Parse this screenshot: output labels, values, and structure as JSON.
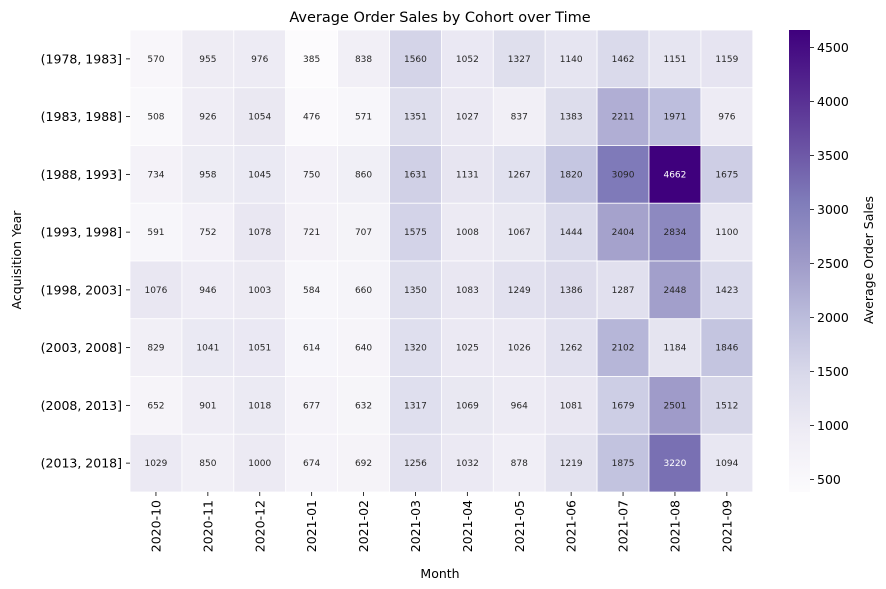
{
  "chart_data": {
    "type": "heatmap",
    "title": "Average Order Sales by Cohort over Time",
    "xlabel": "Month",
    "ylabel": "Acquisition Year",
    "colorbar_label": "Average Order Sales",
    "colormap": "Purples",
    "color_range": [
      385,
      4662
    ],
    "colorbar_ticks": [
      500,
      1000,
      1500,
      2000,
      2500,
      3000,
      3500,
      4000,
      4500
    ],
    "x_categories": [
      "2020-10",
      "2020-11",
      "2020-12",
      "2021-01",
      "2021-02",
      "2021-03",
      "2021-04",
      "2021-05",
      "2021-06",
      "2021-07",
      "2021-08",
      "2021-09"
    ],
    "y_categories": [
      "(1978, 1983]",
      "(1983, 1988]",
      "(1988, 1993]",
      "(1993, 1998]",
      "(1998, 2003]",
      "(2003, 2008]",
      "(2008, 2013]",
      "(2013, 2018]"
    ],
    "values": [
      [
        570,
        955,
        976,
        385,
        838,
        1560,
        1052,
        1327,
        1140,
        1462,
        1151,
        1159
      ],
      [
        508,
        926,
        1054,
        476,
        571,
        1351,
        1027,
        837,
        1383,
        2211,
        1971,
        976
      ],
      [
        734,
        958,
        1045,
        750,
        860,
        1631,
        1131,
        1267,
        1820,
        3090,
        4662,
        1675
      ],
      [
        591,
        752,
        1078,
        721,
        707,
        1575,
        1008,
        1067,
        1444,
        2404,
        2834,
        1100
      ],
      [
        1076,
        946,
        1003,
        584,
        660,
        1350,
        1083,
        1249,
        1386,
        1287,
        2448,
        1423
      ],
      [
        829,
        1041,
        1051,
        614,
        640,
        1320,
        1025,
        1026,
        1262,
        2102,
        1184,
        1846
      ],
      [
        652,
        901,
        1018,
        677,
        632,
        1317,
        1069,
        964,
        1081,
        1679,
        2501,
        1512
      ],
      [
        1029,
        850,
        1000,
        674,
        692,
        1256,
        1032,
        878,
        1219,
        1875,
        3220,
        1094
      ]
    ]
  }
}
